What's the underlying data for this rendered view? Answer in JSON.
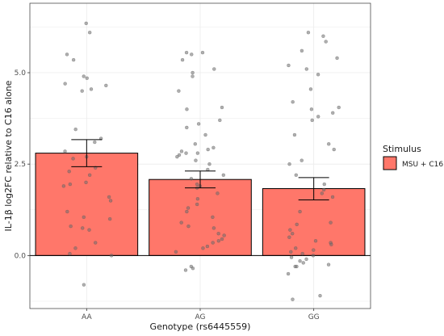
{
  "chart_data": {
    "type": "bar",
    "title": "",
    "xlabel": "Genotype (rs6445559)",
    "ylabel": "IL-1β log2FC relative to C16 alone",
    "categories": [
      "AA",
      "AG",
      "GG"
    ],
    "ylim": [
      -1.45,
      6.9
    ],
    "yticks": [
      0.0,
      2.5,
      5.0
    ],
    "ytick_labels": [
      "0.0",
      "2.5",
      "5.0"
    ],
    "grid": true,
    "legend": {
      "title": "Stimulus",
      "placement": "right"
    },
    "series": [
      {
        "name": "MSU + C16",
        "color": "#ff776a",
        "values": [
          2.8,
          2.08,
          1.83
        ],
        "error_low": [
          2.43,
          1.85,
          1.52
        ],
        "error_high": [
          3.17,
          2.31,
          2.13
        ]
      }
    ],
    "points": {
      "AA": [
        6.35,
        6.1,
        5.5,
        5.35,
        4.9,
        4.85,
        4.7,
        4.65,
        4.55,
        4.5,
        3.45,
        3.2,
        3.1,
        2.85,
        2.7,
        2.65,
        2.4,
        2.3,
        2.2,
        2.0,
        1.95,
        1.9,
        1.6,
        1.5,
        1.2,
        1.05,
        1.0,
        0.8,
        0.75,
        0.7,
        0.35,
        0.2,
        0.05,
        0.0,
        -0.8
      ],
      "AG": [
        5.55,
        5.55,
        5.5,
        5.35,
        5.1,
        5.0,
        4.9,
        4.5,
        4.05,
        4.0,
        3.7,
        3.6,
        3.5,
        3.3,
        3.05,
        2.95,
        2.9,
        2.85,
        2.8,
        2.8,
        2.75,
        2.7,
        2.6,
        2.5,
        2.35,
        2.2,
        2.1,
        1.95,
        1.9,
        1.85,
        1.7,
        1.55,
        1.4,
        1.3,
        1.2,
        1.05,
        0.9,
        0.8,
        0.75,
        0.6,
        0.55,
        0.45,
        0.4,
        0.35,
        0.25,
        0.2,
        0.1,
        -0.3,
        -0.35,
        -0.4
      ],
      "GG": [
        6.1,
        6.0,
        5.85,
        5.6,
        5.4,
        5.2,
        5.1,
        4.95,
        4.55,
        4.2,
        4.05,
        4.0,
        3.9,
        3.8,
        3.7,
        3.3,
        3.05,
        2.9,
        2.6,
        2.5,
        2.2,
        1.95,
        1.8,
        1.7,
        1.6,
        1.2,
        0.9,
        0.85,
        0.7,
        0.6,
        0.5,
        0.4,
        0.35,
        0.3,
        0.2,
        0.15,
        0.1,
        0.05,
        0.0,
        -0.05,
        -0.1,
        -0.15,
        -0.2,
        -0.25,
        -0.3,
        -0.3,
        -0.5,
        -1.1,
        -1.2
      ]
    }
  }
}
